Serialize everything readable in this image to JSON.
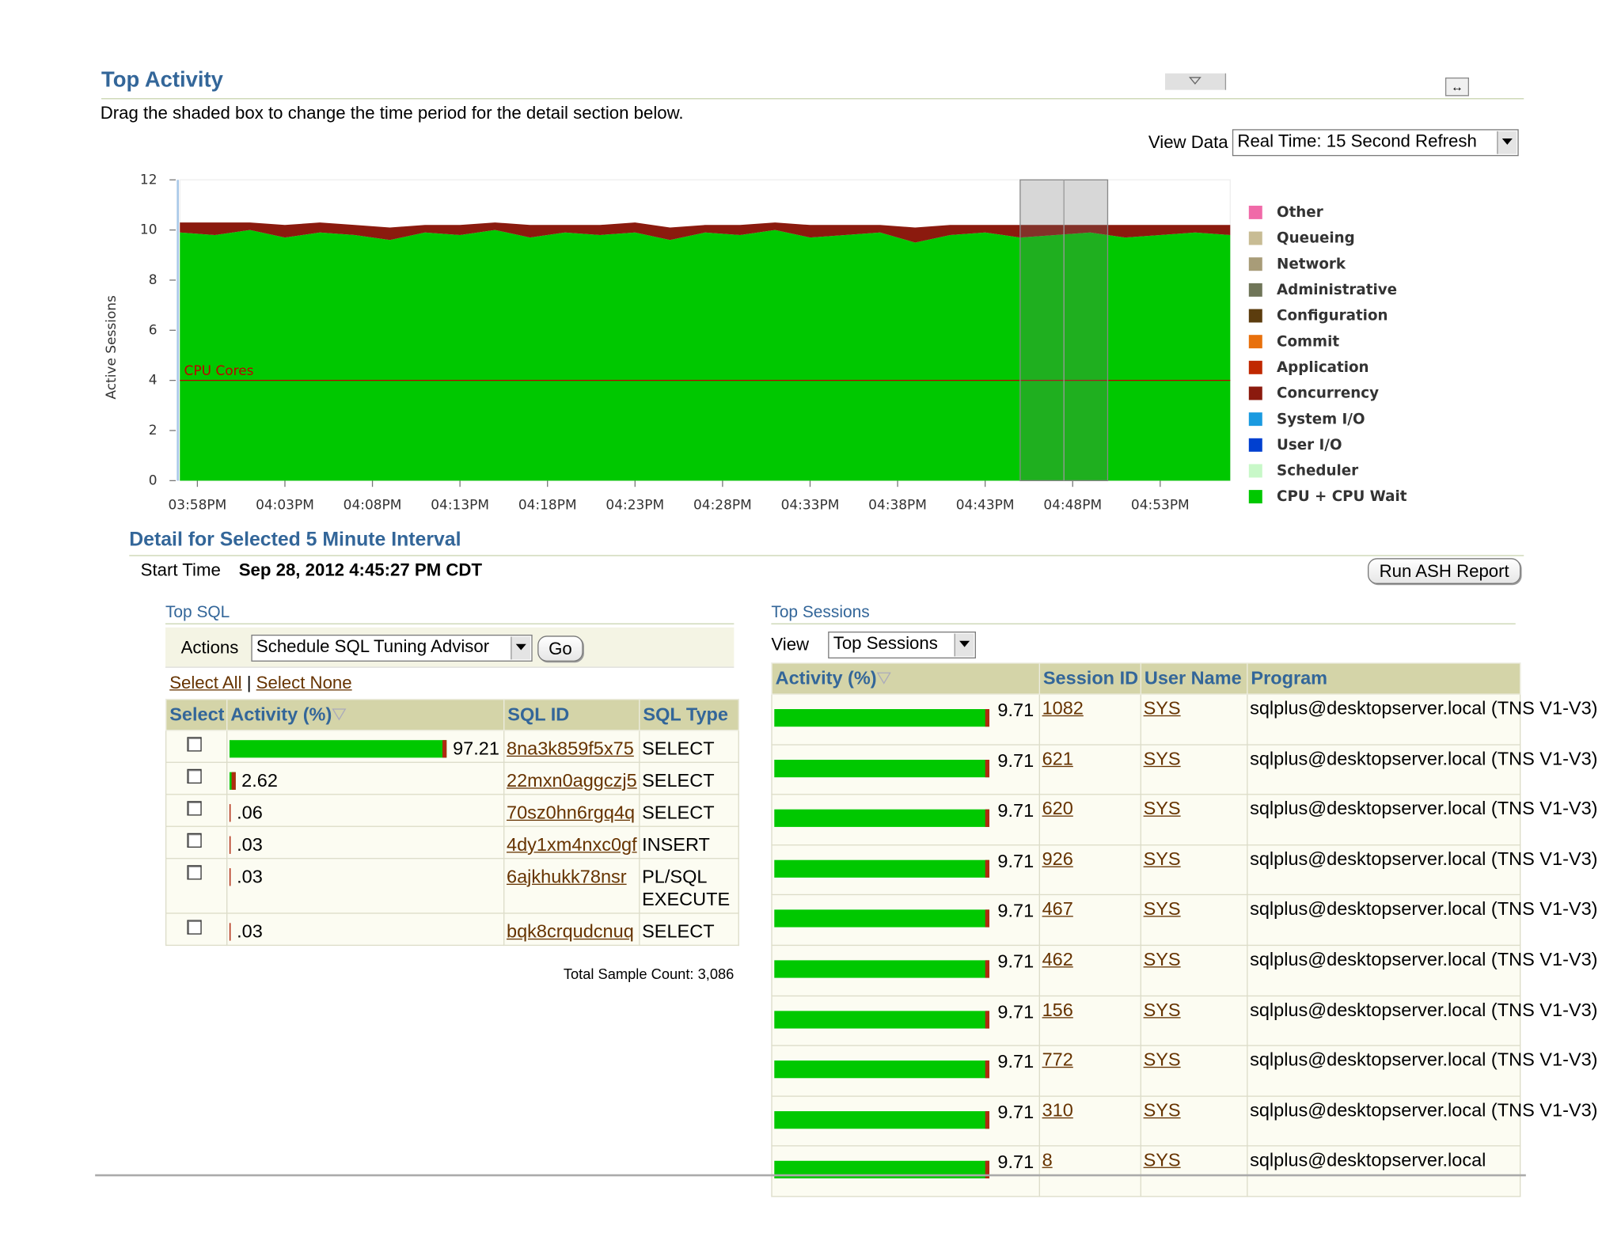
{
  "header": {
    "title": "Top Activity",
    "instructions": "Drag the shaded box to change the time period for the detail section below.",
    "view_data_label": "View Data",
    "view_data_value": "Real Time: 15 Second Refresh"
  },
  "chart_data": {
    "type": "area",
    "y_label": "Active Sessions",
    "x": [
      "03:57PM",
      "03:59PM",
      "04:01PM",
      "04:03PM",
      "04:05PM",
      "04:07PM",
      "04:09PM",
      "04:11PM",
      "04:13PM",
      "04:15PM",
      "04:17PM",
      "04:19PM",
      "04:21PM",
      "04:23PM",
      "04:25PM",
      "04:27PM",
      "04:29PM",
      "04:31PM",
      "04:33PM",
      "04:35PM",
      "04:37PM",
      "04:39PM",
      "04:41PM",
      "04:43PM",
      "04:45PM",
      "04:47PM",
      "04:49PM",
      "04:51PM",
      "04:53PM",
      "04:55PM",
      "04:57PM"
    ],
    "xlim": [
      "03:57PM",
      "04:57PM"
    ],
    "xticks": [
      "03:58PM",
      "04:03PM",
      "04:08PM",
      "04:13PM",
      "04:18PM",
      "04:23PM",
      "04:28PM",
      "04:33PM",
      "04:38PM",
      "04:43PM",
      "04:48PM",
      "04:53PM"
    ],
    "ylim": [
      0,
      12
    ],
    "yticks": [
      0,
      2,
      4,
      6,
      8,
      10,
      12
    ],
    "series": [
      {
        "name": "Other",
        "color": "#f06aa8",
        "values": [
          0,
          0,
          0,
          0,
          0,
          0,
          0,
          0,
          0,
          0,
          0,
          0,
          0,
          0,
          0,
          0,
          0,
          0,
          0,
          0,
          0,
          0,
          0,
          0,
          0,
          0,
          0,
          0,
          0,
          0,
          0
        ]
      },
      {
        "name": "Queueing",
        "color": "#c8bc94",
        "values": [
          0,
          0,
          0,
          0,
          0,
          0,
          0,
          0,
          0,
          0,
          0,
          0,
          0,
          0,
          0,
          0,
          0,
          0,
          0,
          0,
          0,
          0,
          0,
          0,
          0,
          0,
          0,
          0,
          0,
          0,
          0
        ]
      },
      {
        "name": "Network",
        "color": "#a89c78",
        "values": [
          0,
          0,
          0,
          0,
          0,
          0,
          0,
          0,
          0,
          0,
          0,
          0,
          0,
          0,
          0,
          0,
          0,
          0,
          0,
          0,
          0,
          0,
          0,
          0,
          0,
          0,
          0,
          0,
          0,
          0,
          0
        ]
      },
      {
        "name": "Administrative",
        "color": "#6f7558",
        "values": [
          0,
          0,
          0,
          0,
          0,
          0,
          0,
          0,
          0,
          0,
          0,
          0,
          0,
          0,
          0,
          0,
          0,
          0,
          0,
          0,
          0,
          0,
          0,
          0,
          0,
          0,
          0,
          0,
          0,
          0,
          0
        ]
      },
      {
        "name": "Configuration",
        "color": "#5c3d0e",
        "values": [
          0,
          0,
          0,
          0,
          0,
          0,
          0,
          0,
          0,
          0,
          0,
          0,
          0,
          0,
          0,
          0,
          0,
          0,
          0,
          0,
          0,
          0,
          0,
          0,
          0,
          0,
          0,
          0,
          0,
          0,
          0
        ]
      },
      {
        "name": "Commit",
        "color": "#e8700c",
        "values": [
          0,
          0,
          0,
          0,
          0,
          0,
          0,
          0,
          0,
          0,
          0,
          0,
          0,
          0,
          0,
          0,
          0,
          0,
          0,
          0,
          0,
          0,
          0,
          0,
          0,
          0,
          0,
          0,
          0,
          0,
          0
        ]
      },
      {
        "name": "Application",
        "color": "#c02800",
        "values": [
          0,
          0,
          0,
          0,
          0,
          0,
          0,
          0,
          0,
          0,
          0,
          0,
          0,
          0,
          0,
          0,
          0,
          0,
          0,
          0,
          0,
          0,
          0,
          0,
          0,
          0,
          0,
          0,
          0,
          0,
          0
        ]
      },
      {
        "name": "Concurrency",
        "color": "#8b1a0e",
        "values": [
          0.4,
          0.5,
          0.3,
          0.5,
          0.4,
          0.4,
          0.5,
          0.3,
          0.4,
          0.3,
          0.5,
          0.3,
          0.4,
          0.4,
          0.5,
          0.3,
          0.4,
          0.3,
          0.5,
          0.4,
          0.3,
          0.6,
          0.4,
          0.3,
          0.5,
          0.4,
          0.3,
          0.5,
          0.4,
          0.3,
          0.4
        ]
      },
      {
        "name": "System I/O",
        "color": "#1a9ae0",
        "values": [
          0,
          0,
          0,
          0,
          0,
          0,
          0,
          0,
          0,
          0,
          0,
          0,
          0,
          0,
          0,
          0,
          0,
          0,
          0,
          0,
          0,
          0,
          0,
          0,
          0,
          0,
          0,
          0,
          0,
          0,
          0
        ]
      },
      {
        "name": "User I/O",
        "color": "#0040d0",
        "values": [
          0,
          0,
          0,
          0,
          0,
          0,
          0,
          0,
          0,
          0,
          0,
          0,
          0,
          0,
          0,
          0,
          0,
          0,
          0,
          0,
          0,
          0,
          0,
          0,
          0,
          0,
          0,
          0,
          0,
          0,
          0
        ]
      },
      {
        "name": "Scheduler",
        "color": "#c8f8c8",
        "values": [
          0,
          0,
          0,
          0,
          0,
          0,
          0,
          0,
          0,
          0,
          0,
          0,
          0,
          0,
          0,
          0,
          0,
          0,
          0,
          0,
          0,
          0,
          0,
          0,
          0,
          0,
          0,
          0,
          0,
          0,
          0
        ]
      },
      {
        "name": "CPU + CPU Wait",
        "color": "#00c800",
        "values": [
          9.9,
          9.8,
          10.0,
          9.7,
          9.9,
          9.8,
          9.6,
          9.9,
          9.8,
          10.0,
          9.7,
          9.9,
          9.8,
          9.9,
          9.6,
          9.9,
          9.8,
          10.0,
          9.7,
          9.8,
          9.9,
          9.5,
          9.8,
          9.9,
          9.7,
          9.8,
          9.9,
          9.7,
          9.8,
          9.9,
          9.8
        ]
      }
    ],
    "reference_line": {
      "label": "CPU Cores",
      "value": 4,
      "color": "#c00000"
    },
    "selection": {
      "start": "04:45PM",
      "end": "04:50PM"
    }
  },
  "detail": {
    "title": "Detail for Selected 5 Minute Interval",
    "start_time_label": "Start Time",
    "start_time": "Sep 28, 2012 4:45:27 PM CDT",
    "report_button": "Run ASH Report"
  },
  "top_sql": {
    "title": "Top SQL",
    "actions_label": "Actions",
    "action": "Schedule SQL Tuning Advisor",
    "go": "Go",
    "select_all": "Select All",
    "select_none": "Select None",
    "columns": [
      "Select",
      "Activity (%)",
      "SQL ID",
      "SQL Type"
    ],
    "rows": [
      {
        "activity": 97.21,
        "sql_id": "8na3k859f5x75",
        "sql_type": "SELECT"
      },
      {
        "activity": 2.62,
        "sql_id": "22mxn0aggczj5",
        "sql_type": "SELECT"
      },
      {
        "activity": 0.06,
        "activity_label": ".06",
        "sql_id": "70sz0hn6rgq4q",
        "sql_type": "SELECT"
      },
      {
        "activity": 0.03,
        "activity_label": ".03",
        "sql_id": "4dy1xm4nxc0gf",
        "sql_type": "INSERT"
      },
      {
        "activity": 0.03,
        "activity_label": ".03",
        "sql_id": "6ajkhukk78nsr",
        "sql_type": "PL/SQL EXECUTE"
      },
      {
        "activity": 0.03,
        "activity_label": ".03",
        "sql_id": "bqk8crqudcnuq",
        "sql_type": "SELECT"
      }
    ],
    "total": "Total Sample Count: 3,086"
  },
  "top_sessions": {
    "title": "Top Sessions",
    "view_label": "View",
    "view": "Top Sessions",
    "columns": [
      "Activity (%)",
      "Session ID",
      "User Name",
      "Program"
    ],
    "rows": [
      {
        "activity": 9.71,
        "session_id": "1082",
        "user": "SYS",
        "program": "sqlplus@desktopserver.local (TNS V1-V3)"
      },
      {
        "activity": 9.71,
        "session_id": "621",
        "user": "SYS",
        "program": "sqlplus@desktopserver.local (TNS V1-V3)"
      },
      {
        "activity": 9.71,
        "session_id": "620",
        "user": "SYS",
        "program": "sqlplus@desktopserver.local (TNS V1-V3)"
      },
      {
        "activity": 9.71,
        "session_id": "926",
        "user": "SYS",
        "program": "sqlplus@desktopserver.local (TNS V1-V3)"
      },
      {
        "activity": 9.71,
        "session_id": "467",
        "user": "SYS",
        "program": "sqlplus@desktopserver.local (TNS V1-V3)"
      },
      {
        "activity": 9.71,
        "session_id": "462",
        "user": "SYS",
        "program": "sqlplus@desktopserver.local (TNS V1-V3)"
      },
      {
        "activity": 9.71,
        "session_id": "156",
        "user": "SYS",
        "program": "sqlplus@desktopserver.local (TNS V1-V3)"
      },
      {
        "activity": 9.71,
        "session_id": "772",
        "user": "SYS",
        "program": "sqlplus@desktopserver.local (TNS V1-V3)"
      },
      {
        "activity": 9.71,
        "session_id": "310",
        "user": "SYS",
        "program": "sqlplus@desktopserver.local (TNS V1-V3)"
      },
      {
        "activity": 9.71,
        "session_id": "8",
        "user": "SYS",
        "program": "sqlplus@desktopserver.local"
      }
    ]
  }
}
